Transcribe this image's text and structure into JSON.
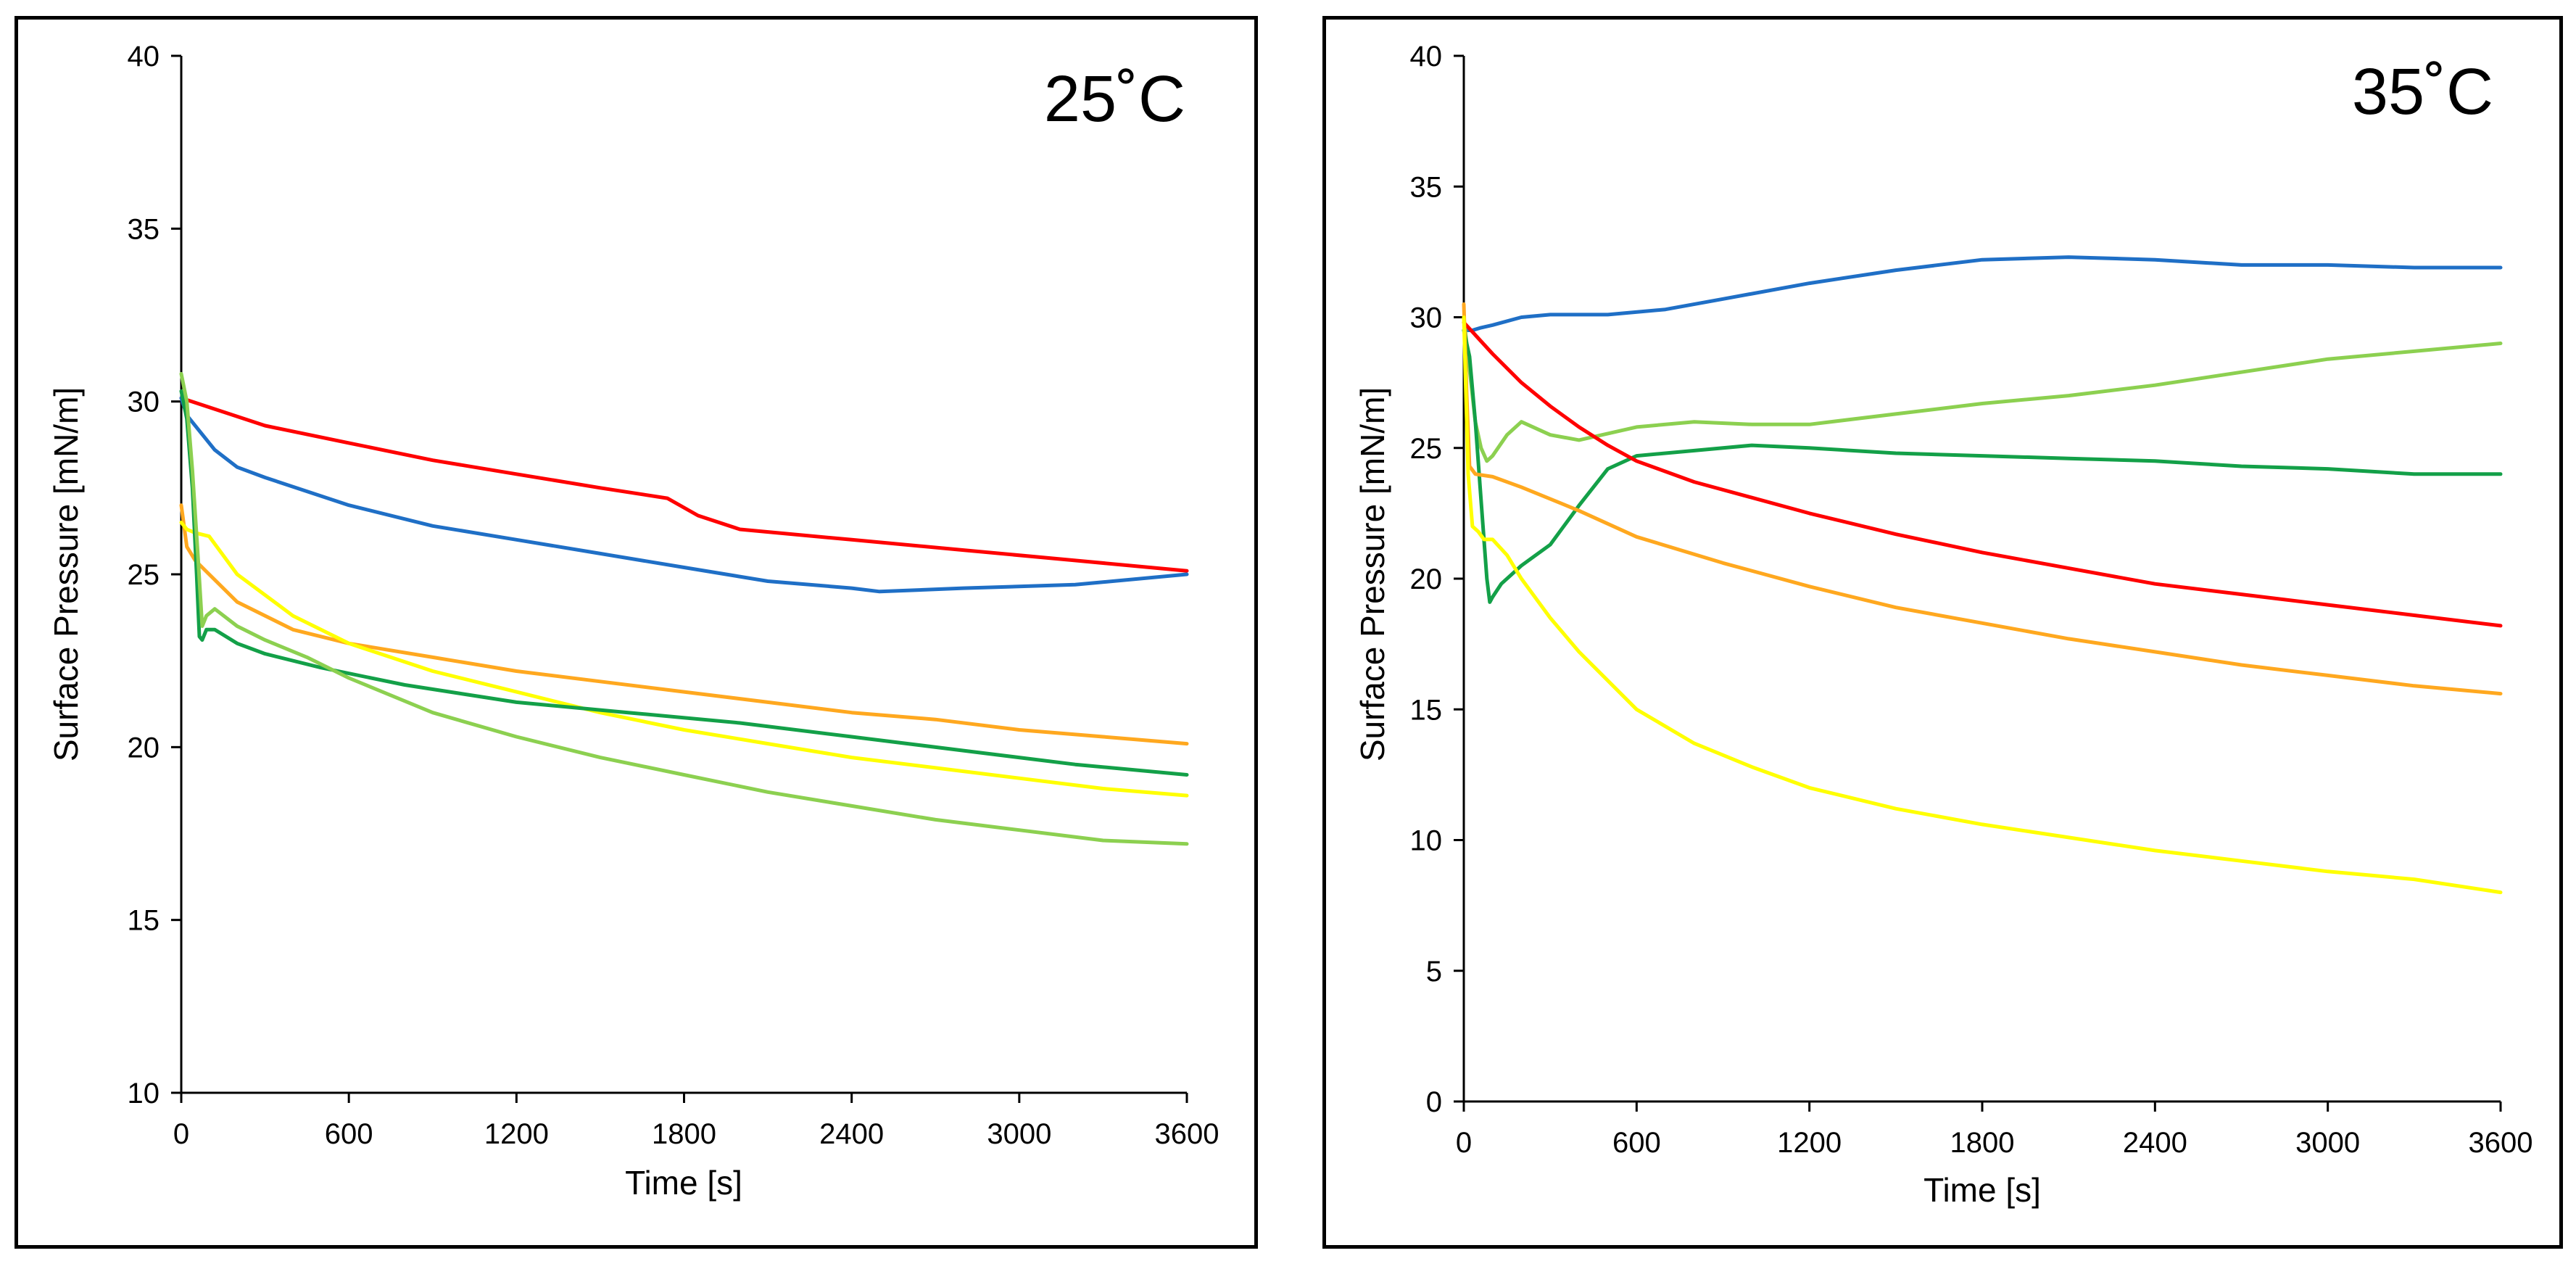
{
  "chart_data": [
    {
      "type": "line",
      "title": "25˚C",
      "xlabel": "Time [s]",
      "ylabel": "Surface Pressure [mN/m]",
      "xlim": [
        0,
        3600
      ],
      "ylim": [
        10,
        40
      ],
      "xticks": [
        "0",
        "600",
        "1200",
        "1800",
        "2400",
        "3000",
        "3600"
      ],
      "yticks": [
        "10",
        "15",
        "20",
        "25",
        "30",
        "35",
        "40"
      ],
      "grid": false,
      "legend": "none",
      "series": [
        {
          "color": "#ff0000",
          "x": [
            0,
            300,
            600,
            900,
            1200,
            1500,
            1740,
            1850,
            2000,
            2400,
            2800,
            3200,
            3600
          ],
          "y": [
            30.1,
            29.3,
            28.8,
            28.3,
            27.9,
            27.5,
            27.2,
            26.7,
            26.3,
            26.0,
            25.7,
            25.4,
            25.1
          ]
        },
        {
          "color": "#1f6fc6",
          "x": [
            0,
            20,
            60,
            120,
            200,
            300,
            600,
            900,
            1200,
            1500,
            1800,
            2100,
            2400,
            2500,
            2800,
            3200,
            3600
          ],
          "y": [
            30.1,
            29.6,
            29.2,
            28.6,
            28.1,
            27.8,
            27.0,
            26.4,
            26.0,
            25.6,
            25.2,
            24.8,
            24.6,
            24.5,
            24.6,
            24.7,
            25.0
          ]
        },
        {
          "color": "#ffa81f",
          "x": [
            0,
            20,
            50,
            100,
            200,
            400,
            600,
            900,
            1200,
            1500,
            1800,
            2100,
            2400,
            2700,
            3000,
            3300,
            3600
          ],
          "y": [
            27.0,
            25.8,
            25.4,
            25.0,
            24.2,
            23.4,
            23.0,
            22.6,
            22.2,
            21.9,
            21.6,
            21.3,
            21.0,
            20.8,
            20.5,
            20.3,
            20.1
          ]
        },
        {
          "color": "#ffff00",
          "x": [
            0,
            20,
            50,
            100,
            200,
            400,
            600,
            900,
            1200,
            1500,
            1800,
            2100,
            2400,
            2700,
            3000,
            3300,
            3600
          ],
          "y": [
            26.5,
            26.3,
            26.2,
            26.1,
            25.0,
            23.8,
            23.0,
            22.2,
            21.6,
            21.0,
            20.5,
            20.1,
            19.7,
            19.4,
            19.1,
            18.8,
            18.6
          ]
        },
        {
          "color": "#13a048",
          "x": [
            0,
            20,
            40,
            55,
            65,
            75,
            90,
            120,
            200,
            300,
            500,
            800,
            1200,
            1600,
            2000,
            2400,
            2800,
            3200,
            3600
          ],
          "y": [
            30.3,
            29.5,
            27.5,
            25.0,
            23.2,
            23.1,
            23.4,
            23.4,
            23.0,
            22.7,
            22.3,
            21.8,
            21.3,
            21.0,
            20.7,
            20.3,
            19.9,
            19.5,
            19.2
          ]
        },
        {
          "color": "#8cd050",
          "x": [
            0,
            20,
            40,
            60,
            75,
            90,
            120,
            200,
            300,
            450,
            600,
            900,
            1200,
            1500,
            1800,
            2100,
            2400,
            2700,
            3000,
            3300,
            3600
          ],
          "y": [
            30.8,
            30.0,
            28.0,
            25.5,
            23.5,
            23.8,
            24.0,
            23.5,
            23.1,
            22.6,
            22.0,
            21.0,
            20.3,
            19.7,
            19.2,
            18.7,
            18.3,
            17.9,
            17.6,
            17.3,
            17.2
          ]
        }
      ]
    },
    {
      "type": "line",
      "title": "35˚C",
      "xlabel": "Time [s]",
      "ylabel": "Surface Pressure [mN/m]",
      "xlim": [
        0,
        3600
      ],
      "ylim": [
        0,
        40
      ],
      "xticks": [
        "0",
        "600",
        "1200",
        "1800",
        "2400",
        "3000",
        "3600"
      ],
      "yticks": [
        "0",
        "5",
        "10",
        "15",
        "20",
        "25",
        "30",
        "35",
        "40"
      ],
      "grid": false,
      "legend": "none",
      "series": [
        {
          "color": "#1f6fc6",
          "x": [
            0,
            30,
            60,
            100,
            200,
            300,
            500,
            700,
            900,
            1200,
            1500,
            1800,
            2100,
            2400,
            2700,
            3000,
            3300,
            3600
          ],
          "y": [
            29.5,
            29.5,
            29.6,
            29.7,
            30.0,
            30.1,
            30.1,
            30.3,
            30.7,
            31.3,
            31.8,
            32.2,
            32.3,
            32.2,
            32.0,
            32.0,
            31.9,
            31.9
          ]
        },
        {
          "color": "#8cd050",
          "x": [
            0,
            20,
            40,
            60,
            80,
            100,
            150,
            200,
            300,
            400,
            600,
            800,
            1000,
            1200,
            1500,
            1800,
            2100,
            2400,
            2700,
            3000,
            3300,
            3600
          ],
          "y": [
            30.0,
            28.0,
            26.0,
            25.0,
            24.5,
            24.7,
            25.5,
            26.0,
            25.5,
            25.3,
            25.8,
            26.0,
            25.9,
            25.9,
            26.3,
            26.7,
            27.0,
            27.4,
            27.9,
            28.4,
            28.7,
            29.0
          ]
        },
        {
          "color": "#13a048",
          "x": [
            0,
            20,
            40,
            60,
            80,
            90,
            100,
            130,
            200,
            300,
            400,
            500,
            600,
            800,
            1000,
            1200,
            1500,
            1800,
            2100,
            2400,
            2700,
            3000,
            3300,
            3600
          ],
          "y": [
            29.5,
            28.5,
            26.0,
            23.0,
            20.0,
            19.1,
            19.3,
            19.8,
            20.5,
            21.3,
            22.8,
            24.2,
            24.7,
            24.9,
            25.1,
            25.0,
            24.8,
            24.7,
            24.6,
            24.5,
            24.3,
            24.2,
            24.0,
            24.0
          ]
        },
        {
          "color": "#ff0000",
          "x": [
            0,
            100,
            200,
            300,
            400,
            500,
            600,
            800,
            1000,
            1200,
            1500,
            1800,
            2100,
            2400,
            2700,
            3000,
            3300,
            3600
          ],
          "y": [
            29.8,
            28.6,
            27.5,
            26.6,
            25.8,
            25.1,
            24.5,
            23.7,
            23.1,
            22.5,
            21.7,
            21.0,
            20.4,
            19.8,
            19.4,
            19.0,
            18.6,
            18.2
          ]
        },
        {
          "color": "#ffa81f",
          "x": [
            0,
            10,
            20,
            40,
            100,
            200,
            400,
            600,
            900,
            1200,
            1500,
            1800,
            2100,
            2400,
            2700,
            3000,
            3300,
            3600
          ],
          "y": [
            30.5,
            27.0,
            24.3,
            24.0,
            23.9,
            23.5,
            22.6,
            21.6,
            20.6,
            19.7,
            18.9,
            18.3,
            17.7,
            17.2,
            16.7,
            16.3,
            15.9,
            15.6
          ]
        },
        {
          "color": "#ffff00",
          "x": [
            0,
            15,
            30,
            50,
            70,
            100,
            150,
            200,
            300,
            400,
            600,
            800,
            1000,
            1200,
            1500,
            1800,
            2100,
            2400,
            2700,
            3000,
            3300,
            3600
          ],
          "y": [
            30.0,
            24.0,
            22.0,
            21.8,
            21.5,
            21.5,
            20.9,
            20.0,
            18.5,
            17.2,
            15.0,
            13.7,
            12.8,
            12.0,
            11.2,
            10.6,
            10.1,
            9.6,
            9.2,
            8.8,
            8.5,
            8.0
          ]
        }
      ]
    }
  ]
}
